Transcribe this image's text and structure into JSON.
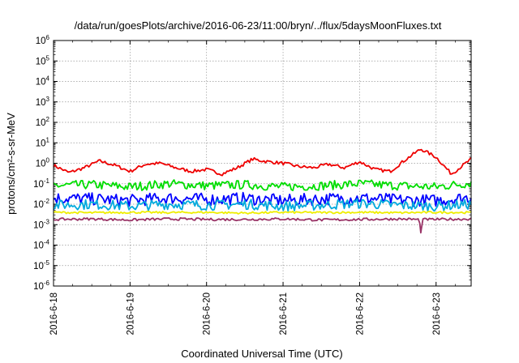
{
  "chart_data": {
    "type": "line",
    "title": "/data/run/goesPlots/archive/2016-06-23/11:00/bryn/../flux/5daysMoonFluxes.txt",
    "xlabel": "Coordinated Universal Time (UTC)",
    "ylabel": "protons/cm²-s-sr-MeV",
    "yscale": "log",
    "ylim": [
      1e-06,
      1000000.0
    ],
    "xlim": [
      "2016-06-18 00:00",
      "2016-06-23 11:00"
    ],
    "grid": true,
    "legend": "none",
    "x_ticks": [
      "2016-6-18",
      "2016-6-19",
      "2016-6-20",
      "2016-6-21",
      "2016-6-22",
      "2016-6-23"
    ],
    "y_ticks": [
      {
        "base": "10",
        "exp": "6"
      },
      {
        "base": "10",
        "exp": "5"
      },
      {
        "base": "10",
        "exp": "4"
      },
      {
        "base": "10",
        "exp": "3"
      },
      {
        "base": "10",
        "exp": "2"
      },
      {
        "base": "10",
        "exp": "1"
      },
      {
        "base": "10",
        "exp": "0"
      },
      {
        "base": "10",
        "exp": "-1"
      },
      {
        "base": "10",
        "exp": "-2"
      },
      {
        "base": "10",
        "exp": "-3"
      },
      {
        "base": "10",
        "exp": "-4"
      },
      {
        "base": "10",
        "exp": "-5"
      },
      {
        "base": "10",
        "exp": "-6"
      }
    ],
    "series": [
      {
        "color": "#ee0000",
        "x_days": [
          0,
          0.2,
          0.4,
          0.6,
          0.8,
          1.0,
          1.2,
          1.4,
          1.6,
          1.8,
          2.0,
          2.2,
          2.4,
          2.6,
          2.8,
          3.0,
          3.2,
          3.4,
          3.6,
          3.8,
          4.0,
          4.2,
          4.4,
          4.6,
          4.8,
          5.0,
          5.2,
          5.46
        ],
        "values": [
          0.8,
          0.35,
          0.6,
          1.3,
          0.8,
          0.4,
          0.9,
          1.0,
          0.6,
          0.4,
          0.5,
          0.3,
          0.6,
          1.6,
          1.2,
          1.0,
          0.7,
          0.6,
          0.9,
          0.6,
          1.2,
          0.5,
          0.4,
          1.5,
          5.0,
          2.0,
          0.3,
          1.6
        ]
      },
      {
        "color": "#00dd00",
        "x_days": [
          0,
          0.5,
          1.0,
          1.5,
          2.0,
          2.5,
          3.0,
          3.5,
          4.0,
          4.5,
          5.0,
          5.46
        ],
        "values": [
          0.08,
          0.09,
          0.07,
          0.1,
          0.08,
          0.09,
          0.07,
          0.08,
          0.1,
          0.08,
          0.07,
          0.11
        ]
      },
      {
        "color": "#0000ff",
        "x_days": [
          0,
          0.5,
          1.0,
          1.5,
          2.0,
          2.5,
          3.0,
          3.5,
          4.0,
          4.5,
          5.0,
          5.46
        ],
        "values": [
          0.02,
          0.018,
          0.015,
          0.02,
          0.017,
          0.019,
          0.015,
          0.018,
          0.02,
          0.016,
          0.015,
          0.022
        ]
      },
      {
        "color": "#00aadd",
        "x_days": [
          0,
          0.5,
          1.0,
          1.5,
          2.0,
          2.5,
          3.0,
          3.5,
          4.0,
          4.5,
          5.0,
          5.46
        ],
        "values": [
          0.009,
          0.01,
          0.008,
          0.01,
          0.009,
          0.01,
          0.008,
          0.009,
          0.011,
          0.009,
          0.008,
          0.01
        ]
      },
      {
        "color": "#eeee00",
        "x_days": [
          0,
          0.5,
          1.0,
          1.5,
          2.0,
          2.5,
          3.0,
          3.5,
          4.0,
          4.5,
          5.0,
          5.46
        ],
        "values": [
          0.004,
          0.0038,
          0.004,
          0.0039,
          0.004,
          0.0037,
          0.004,
          0.0039,
          0.004,
          0.0038,
          0.004,
          0.0039
        ]
      },
      {
        "color": "#993366",
        "x_days": [
          0,
          0.5,
          1.0,
          1.5,
          2.0,
          2.5,
          3.0,
          3.5,
          4.0,
          4.5,
          4.78,
          4.8,
          4.82,
          5.0,
          5.46
        ],
        "values": [
          0.0018,
          0.0019,
          0.0017,
          0.0019,
          0.0018,
          0.0018,
          0.0019,
          0.0017,
          0.0018,
          0.0019,
          0.0018,
          0.0004,
          0.0018,
          0.0018,
          0.0019
        ]
      }
    ]
  }
}
